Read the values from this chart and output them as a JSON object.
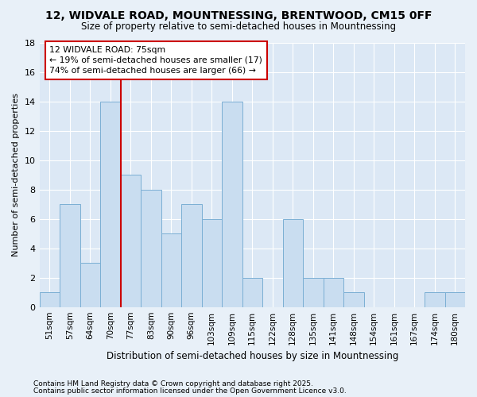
{
  "title1": "12, WIDVALE ROAD, MOUNTNESSING, BRENTWOOD, CM15 0FF",
  "title2": "Size of property relative to semi-detached houses in Mountnessing",
  "ylabel": "Number of semi-detached properties",
  "xlabel_text": "Distribution of semi-detached houses by size in Mountnessing",
  "categories": [
    "51sqm",
    "57sqm",
    "64sqm",
    "70sqm",
    "77sqm",
    "83sqm",
    "90sqm",
    "96sqm",
    "103sqm",
    "109sqm",
    "115sqm",
    "122sqm",
    "128sqm",
    "135sqm",
    "141sqm",
    "148sqm",
    "154sqm",
    "161sqm",
    "167sqm",
    "174sqm",
    "180sqm"
  ],
  "values": [
    1,
    7,
    3,
    14,
    9,
    8,
    5,
    7,
    6,
    14,
    2,
    0,
    6,
    2,
    2,
    1,
    0,
    0,
    0,
    1,
    1
  ],
  "bar_color": "#c9ddf0",
  "bar_edge_color": "#7bafd4",
  "vline_index": 4,
  "vline_color": "#cc0000",
  "annotation_line1": "12 WIDVALE ROAD: 75sqm",
  "annotation_line2": "← 19% of semi-detached houses are smaller (17)",
  "annotation_line3": "74% of semi-detached houses are larger (66) →",
  "annotation_box_edge": "#cc0000",
  "footer1": "Contains HM Land Registry data © Crown copyright and database right 2025.",
  "footer2": "Contains public sector information licensed under the Open Government Licence v3.0.",
  "fig_bg_color": "#e8f0f8",
  "plot_bg_color": "#dce8f5",
  "ylim": [
    0,
    18
  ],
  "yticks": [
    0,
    2,
    4,
    6,
    8,
    10,
    12,
    14,
    16,
    18
  ]
}
